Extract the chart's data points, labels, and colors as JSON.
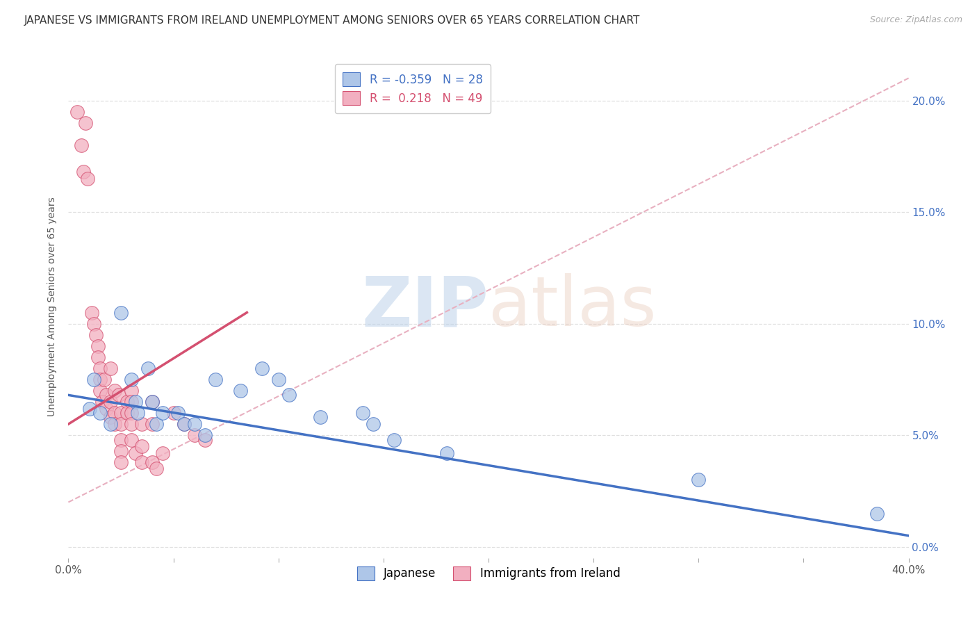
{
  "title": "JAPANESE VS IMMIGRANTS FROM IRELAND UNEMPLOYMENT AMONG SENIORS OVER 65 YEARS CORRELATION CHART",
  "source": "Source: ZipAtlas.com",
  "ylabel": "Unemployment Among Seniors over 65 years",
  "legend_blue_r": "-0.359",
  "legend_blue_n": "28",
  "legend_pink_r": "0.218",
  "legend_pink_n": "49",
  "xlim": [
    0,
    40.0
  ],
  "ylim": [
    -0.5,
    22.0
  ],
  "xticks": [
    0.0,
    5.0,
    10.0,
    15.0,
    20.0,
    25.0,
    30.0,
    35.0,
    40.0
  ],
  "yticks": [
    0.0,
    5.0,
    10.0,
    15.0,
    20.0
  ],
  "blue_color": "#aec6e8",
  "pink_color": "#f2afc0",
  "blue_line_color": "#4472c4",
  "pink_line_color": "#d45070",
  "pink_dash_color": "#e8b0c0",
  "blue_scatter": [
    [
      1.0,
      6.2
    ],
    [
      1.2,
      7.5
    ],
    [
      1.5,
      6.0
    ],
    [
      2.0,
      5.5
    ],
    [
      2.5,
      10.5
    ],
    [
      3.0,
      7.5
    ],
    [
      3.2,
      6.5
    ],
    [
      3.3,
      6.0
    ],
    [
      3.8,
      8.0
    ],
    [
      4.0,
      6.5
    ],
    [
      4.2,
      5.5
    ],
    [
      4.5,
      6.0
    ],
    [
      5.2,
      6.0
    ],
    [
      5.5,
      5.5
    ],
    [
      6.0,
      5.5
    ],
    [
      6.5,
      5.0
    ],
    [
      7.0,
      7.5
    ],
    [
      8.2,
      7.0
    ],
    [
      9.2,
      8.0
    ],
    [
      10.0,
      7.5
    ],
    [
      10.5,
      6.8
    ],
    [
      12.0,
      5.8
    ],
    [
      14.0,
      6.0
    ],
    [
      14.5,
      5.5
    ],
    [
      15.5,
      4.8
    ],
    [
      18.0,
      4.2
    ],
    [
      30.0,
      3.0
    ],
    [
      38.5,
      1.5
    ]
  ],
  "pink_scatter": [
    [
      0.4,
      19.5
    ],
    [
      0.6,
      18.0
    ],
    [
      0.7,
      16.8
    ],
    [
      0.8,
      19.0
    ],
    [
      0.9,
      16.5
    ],
    [
      1.1,
      10.5
    ],
    [
      1.2,
      10.0
    ],
    [
      1.3,
      9.5
    ],
    [
      1.4,
      9.0
    ],
    [
      1.4,
      8.5
    ],
    [
      1.5,
      8.0
    ],
    [
      1.5,
      7.5
    ],
    [
      1.5,
      7.0
    ],
    [
      1.6,
      6.5
    ],
    [
      1.7,
      7.5
    ],
    [
      1.8,
      6.8
    ],
    [
      1.8,
      6.2
    ],
    [
      2.0,
      8.0
    ],
    [
      2.0,
      6.5
    ],
    [
      2.0,
      5.8
    ],
    [
      2.2,
      7.0
    ],
    [
      2.2,
      6.0
    ],
    [
      2.2,
      5.5
    ],
    [
      2.4,
      6.8
    ],
    [
      2.5,
      6.0
    ],
    [
      2.5,
      5.5
    ],
    [
      2.5,
      4.8
    ],
    [
      2.5,
      4.3
    ],
    [
      2.5,
      3.8
    ],
    [
      2.8,
      6.5
    ],
    [
      2.8,
      6.0
    ],
    [
      3.0,
      7.0
    ],
    [
      3.0,
      6.5
    ],
    [
      3.0,
      6.0
    ],
    [
      3.0,
      5.5
    ],
    [
      3.0,
      4.8
    ],
    [
      3.2,
      4.2
    ],
    [
      3.5,
      5.5
    ],
    [
      3.5,
      4.5
    ],
    [
      3.5,
      3.8
    ],
    [
      4.0,
      6.5
    ],
    [
      4.0,
      5.5
    ],
    [
      4.0,
      3.8
    ],
    [
      4.2,
      3.5
    ],
    [
      4.5,
      4.2
    ],
    [
      5.0,
      6.0
    ],
    [
      5.5,
      5.5
    ],
    [
      6.0,
      5.0
    ],
    [
      6.5,
      4.8
    ]
  ],
  "blue_trendline": [
    [
      0.0,
      6.8
    ],
    [
      40.0,
      0.5
    ]
  ],
  "pink_trendline": [
    [
      0.0,
      5.5
    ],
    [
      8.5,
      10.5
    ]
  ],
  "pink_dashed_line": [
    [
      0.0,
      2.0
    ],
    [
      40.0,
      21.0
    ]
  ],
  "background_color": "#ffffff",
  "grid_color": "#e0e0e0",
  "title_fontsize": 11,
  "legend_label_blue": "Japanese",
  "legend_label_pink": "Immigrants from Ireland"
}
